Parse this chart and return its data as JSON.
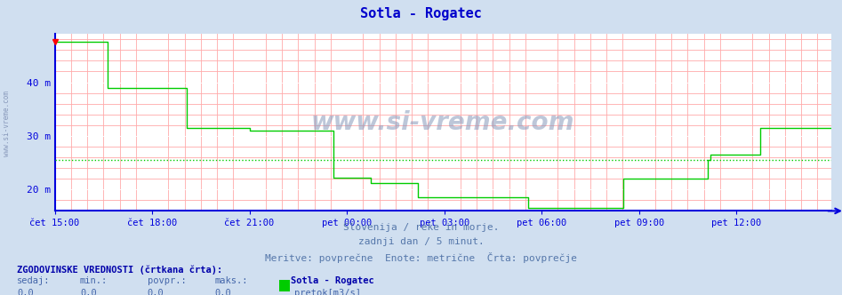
{
  "title": "Sotla - Rogatec",
  "title_color": "#0000cc",
  "bg_color": "#d0dff0",
  "plot_bg_color": "#ffffff",
  "grid_major_color": "#ffffff",
  "grid_minor_color": "#ffaaaa",
  "axis_color": "#0000dd",
  "line_color": "#00cc00",
  "avg_value": 25.5,
  "avg_line_color": "#00cc00",
  "watermark_text": "www.si-vreme.com",
  "watermark_color": "#8899bb",
  "sidebar_text": "www.si-vreme.com",
  "sidebar_color": "#8899bb",
  "ytick_labels": [
    "20 m",
    "30 m",
    "40 m"
  ],
  "ytick_values": [
    20,
    30,
    40
  ],
  "xtick_labels": [
    "čet 15:00",
    "čet 18:00",
    "čet 21:00",
    "pet 00:00",
    "pet 03:00",
    "pet 06:00",
    "pet 09:00",
    "pet 12:00"
  ],
  "xtick_positions": [
    0,
    36,
    72,
    108,
    144,
    180,
    216,
    252
  ],
  "ymin": 16.0,
  "ymax": 49.0,
  "xmin": 0,
  "xmax": 287,
  "subtitle1": "Slovenija / reke in morje.",
  "subtitle2": "zadnji dan / 5 minut.",
  "subtitle3": "Meritve: povprečne  Enote: metrične  Črta: povprečje",
  "bottom_header": "ZGODOVINSKE VREDNOSTI (črtkana črta):",
  "bottom_cols": [
    "sedaj:",
    "min.:",
    "povpr.:",
    "maks.:"
  ],
  "bottom_vals": [
    "0,0",
    "0,0",
    "0,0",
    "0,0"
  ],
  "bottom_station": "Sotla - Rogatec",
  "bottom_unit": "pretok[m3/s]",
  "flow_data": [
    47.5,
    47.5,
    47.5,
    47.5,
    47.5,
    47.5,
    47.5,
    47.5,
    47.5,
    47.5,
    47.5,
    47.5,
    47.5,
    47.5,
    47.5,
    47.5,
    47.5,
    47.5,
    47.5,
    47.5,
    39.0,
    39.0,
    39.0,
    39.0,
    39.0,
    39.0,
    39.0,
    39.0,
    39.0,
    39.0,
    39.0,
    39.0,
    39.0,
    39.0,
    39.0,
    39.0,
    39.0,
    39.0,
    39.0,
    39.0,
    39.0,
    39.0,
    39.0,
    39.0,
    39.0,
    39.0,
    39.0,
    39.0,
    39.0,
    39.0,
    31.5,
    31.5,
    31.5,
    31.5,
    31.5,
    31.5,
    31.5,
    31.5,
    31.5,
    31.5,
    31.5,
    31.5,
    31.5,
    31.5,
    31.5,
    31.5,
    31.5,
    31.5,
    31.5,
    31.5,
    31.5,
    31.5,
    31.5,
    31.5,
    31.0,
    31.0,
    31.0,
    31.0,
    31.0,
    31.0,
    31.0,
    31.0,
    31.0,
    31.0,
    31.0,
    31.0,
    31.0,
    31.0,
    31.0,
    31.0,
    31.0,
    31.0,
    31.0,
    31.0,
    31.0,
    31.0,
    31.0,
    31.0,
    31.0,
    31.0,
    31.0,
    31.0,
    31.0,
    31.0,
    31.0,
    31.0,
    22.2,
    22.2,
    22.2,
    22.2,
    22.2,
    22.2,
    22.2,
    22.2,
    22.2,
    22.2,
    22.2,
    22.2,
    22.2,
    22.2,
    21.2,
    21.2,
    21.2,
    21.2,
    21.2,
    21.2,
    21.2,
    21.2,
    21.2,
    21.2,
    21.2,
    21.2,
    21.2,
    21.2,
    21.2,
    21.2,
    21.2,
    21.2,
    18.5,
    18.5,
    18.5,
    18.5,
    18.5,
    18.5,
    18.5,
    18.5,
    18.5,
    18.5,
    18.5,
    18.5,
    18.5,
    18.5,
    18.5,
    18.5,
    18.5,
    18.5,
    18.5,
    18.5,
    18.5,
    18.5,
    18.5,
    18.5,
    18.5,
    18.5,
    18.5,
    18.5,
    18.5,
    18.5,
    18.5,
    18.5,
    18.5,
    18.5,
    18.5,
    18.5,
    18.5,
    18.5,
    18.5,
    18.5,
    18.5,
    18.5,
    16.5,
    16.5,
    16.5,
    16.5,
    16.5,
    16.5,
    16.5,
    16.5,
    16.5,
    16.5,
    16.5,
    16.5,
    16.5,
    16.5,
    16.5,
    16.5,
    16.5,
    16.5,
    16.5,
    16.5,
    16.5,
    16.5,
    16.5,
    16.5,
    16.5,
    16.5,
    16.5,
    16.5,
    16.5,
    16.5,
    16.5,
    16.5,
    16.5,
    16.5,
    16.5,
    16.5,
    22.0,
    22.0,
    22.0,
    22.0,
    22.0,
    22.0,
    22.0,
    22.0,
    22.0,
    22.0,
    22.0,
    22.0,
    22.0,
    22.0,
    22.0,
    22.0,
    22.0,
    22.0,
    22.0,
    22.0,
    22.0,
    22.0,
    22.0,
    22.0,
    22.0,
    22.0,
    22.0,
    22.0,
    22.0,
    22.0,
    22.0,
    22.0,
    25.5,
    26.5,
    26.5,
    26.5,
    26.5,
    26.5,
    26.5,
    26.5,
    26.5,
    26.5,
    26.5,
    26.5,
    26.5,
    26.5,
    26.5,
    26.5,
    26.5,
    26.5,
    26.5,
    26.5,
    31.5,
    31.5,
    31.5,
    31.5,
    31.5,
    31.5,
    31.5,
    31.5,
    31.5,
    31.5,
    31.5,
    31.5,
    31.5,
    31.5,
    31.5,
    31.5,
    31.5,
    31.5,
    31.5,
    31.5,
    31.5,
    31.5,
    31.5,
    31.5,
    31.5,
    31.5,
    31.5,
    31.5
  ]
}
